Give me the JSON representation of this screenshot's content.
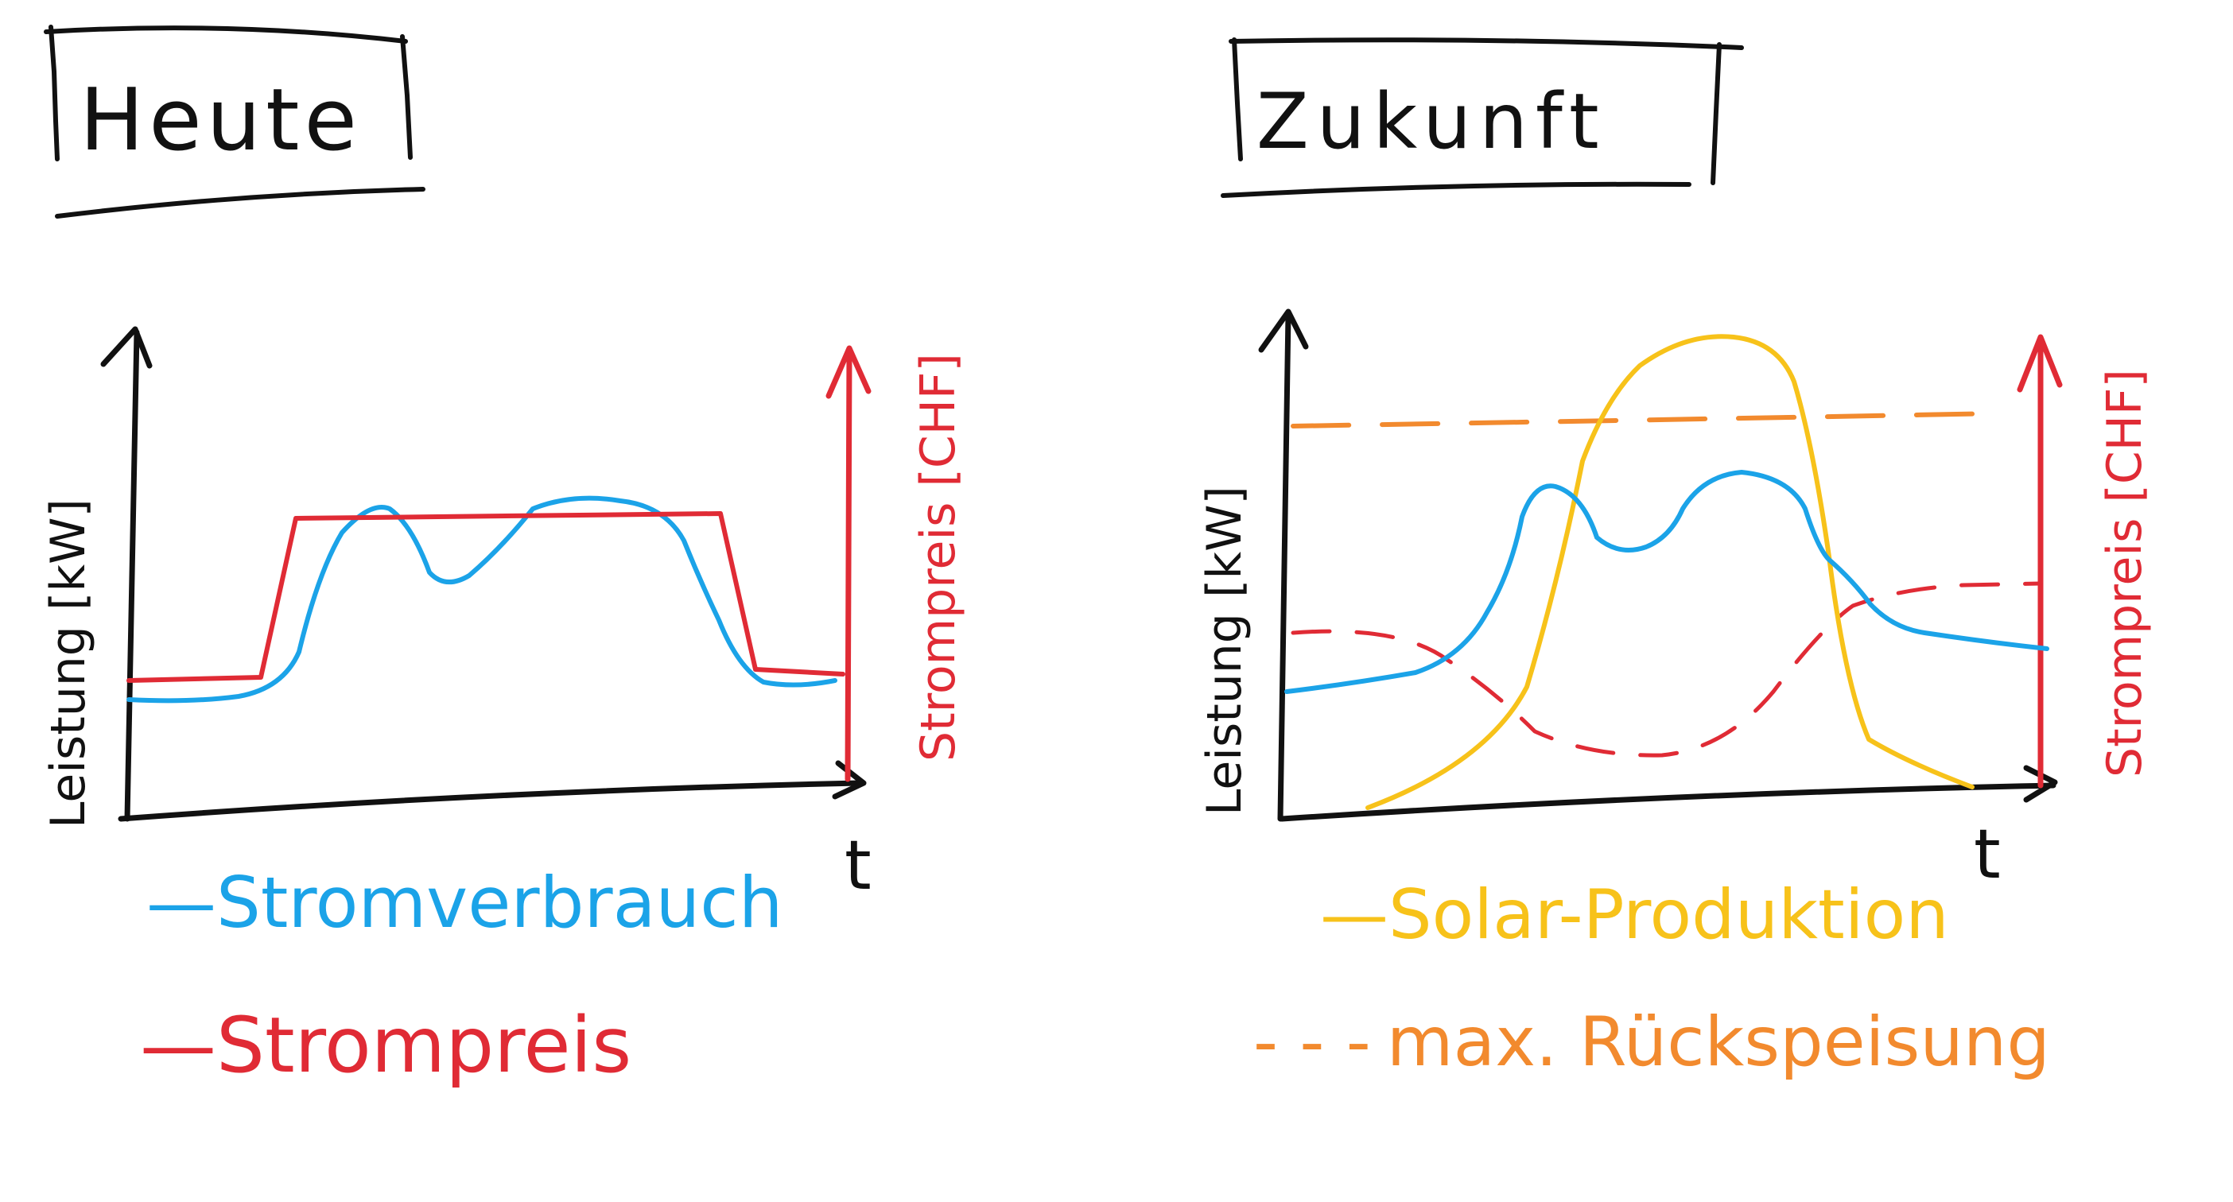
{
  "colors": {
    "ink": "#111111",
    "consumption": "#1ba3e8",
    "price": "#e02b35",
    "solar": "#f7c21a",
    "feedin": "#f28a2e"
  },
  "panels": {
    "today": {
      "title": "Heute",
      "y_label": "Leistung [kW]",
      "y2_label": "Strompreis [CHF]",
      "x_label": "t",
      "legend": [
        {
          "label": "Stromverbrauch",
          "marker": "—",
          "color_key": "consumption"
        },
        {
          "label": "Strompreis",
          "marker": "—",
          "color_key": "price"
        }
      ]
    },
    "future": {
      "title": "Zukunft",
      "y_label": "Leistung [kW]",
      "y2_label": "Strompreis [CHF]",
      "x_label": "t",
      "legend": [
        {
          "label": "Solar-Produktion",
          "marker": "—",
          "color_key": "solar"
        },
        {
          "label": "max. Rückspeisung",
          "marker": "- - -",
          "color_key": "feedin"
        }
      ]
    }
  },
  "icons": {
    "axis_arrow": "arrow-up-icon"
  }
}
